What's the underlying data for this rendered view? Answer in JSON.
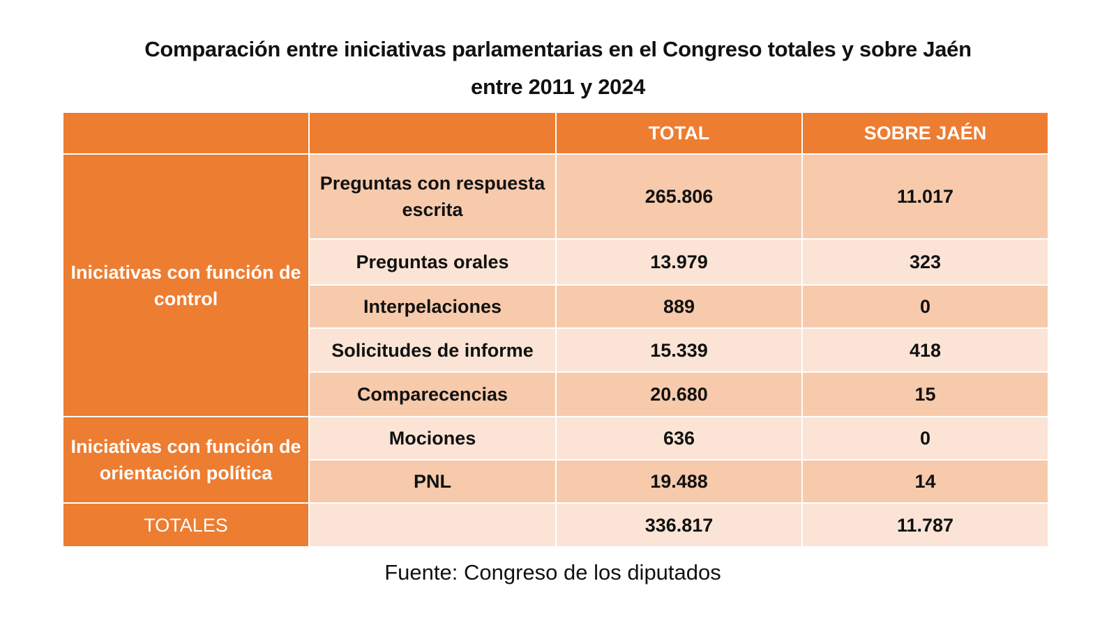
{
  "title": {
    "line1": "Comparación entre iniciativas parlamentarias en el Congreso totales y sobre Jaén",
    "line2": "entre 2011 y 2024"
  },
  "table": {
    "headers": [
      "",
      "",
      "TOTAL",
      "SOBRE JAÉN"
    ],
    "groups": [
      {
        "label": "Iniciativas con función de control"
      },
      {
        "label": "Iniciativas con función de orientación política"
      }
    ],
    "rows": [
      {
        "group": 0,
        "label": "Preguntas con respuesta escrita",
        "total": "265.806",
        "jaen": "11.017"
      },
      {
        "group": 0,
        "label": "Preguntas orales",
        "total": "13.979",
        "jaen": "323"
      },
      {
        "group": 0,
        "label": "Interpelaciones",
        "total": "889",
        "jaen": "0"
      },
      {
        "group": 0,
        "label": "Solicitudes de informe",
        "total": "15.339",
        "jaen": "418"
      },
      {
        "group": 0,
        "label": "Comparecencias",
        "total": "20.680",
        "jaen": "15"
      },
      {
        "group": 1,
        "label": "Mociones",
        "total": "636",
        "jaen": "0"
      },
      {
        "group": 1,
        "label": "PNL",
        "total": "19.488",
        "jaen": "14"
      }
    ],
    "totals": {
      "label": "TOTALES",
      "sublabel": "",
      "total": "336.817",
      "jaen": "11.787"
    }
  },
  "source": "Fuente: Congreso de los diputados",
  "colors": {
    "header_orange": "#ed7d31",
    "row_dark": "#f7caac",
    "row_light": "#fbe4d5",
    "header_text": "#ffffff"
  }
}
